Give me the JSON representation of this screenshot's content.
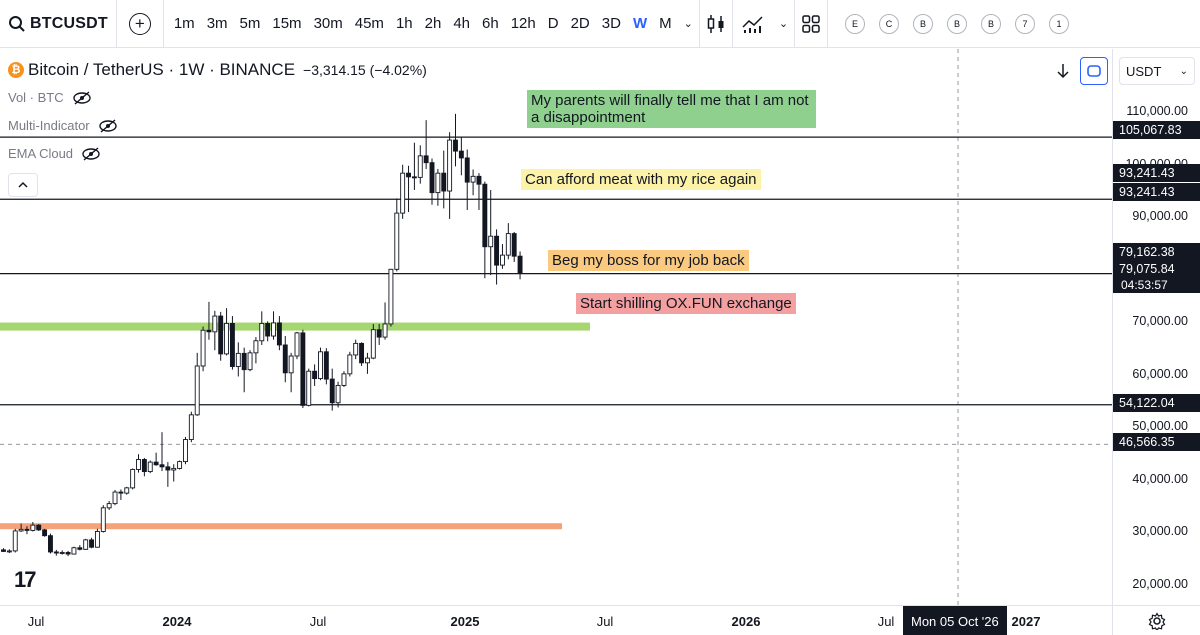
{
  "toolbar": {
    "symbol": "BTCUSDT",
    "timeframes": [
      "1m",
      "3m",
      "5m",
      "15m",
      "30m",
      "45m",
      "1h",
      "2h",
      "4h",
      "6h",
      "12h",
      "D",
      "2D",
      "3D",
      "W",
      "M"
    ],
    "active_timeframe": "W",
    "small_buttons": [
      "E",
      "C",
      "B",
      "B",
      "B",
      "7",
      "1"
    ]
  },
  "legend": {
    "title": "Bitcoin / TetherUS · 1W · BINANCE",
    "change": "−3,314.15 (−4.02%)",
    "indicators": [
      "Vol · BTC",
      "Multi-Indicator",
      "EMA Cloud"
    ]
  },
  "annotations": [
    {
      "text": "My parents will finally tell me that I am not a disappointment",
      "bg": "#8fd08f"
    },
    {
      "text": "Can afford meat with my rice again",
      "bg": "#fdf3a8"
    },
    {
      "text": "Beg my boss for my job back",
      "bg": "#f9ca7f"
    },
    {
      "text": "Start shilling OX.FUN exchange",
      "bg": "#f4a0a0"
    }
  ],
  "price_axis": {
    "currency": "USDT",
    "ticks": [
      "110,000.00",
      "100,000.00",
      "90,000.00",
      "70,000.00",
      "60,000.00",
      "50,000.00",
      "40,000.00",
      "30,000.00",
      "20,000.00"
    ],
    "labels": [
      "105,067.83",
      "93,241.43",
      "93,241.43",
      "79,162.38",
      "79,075.84",
      "54,122.04",
      "46,566.35"
    ],
    "countdown": "04:53:57"
  },
  "time_axis": {
    "ticks": [
      "Jul",
      "2024",
      "Jul",
      "2025",
      "Jul",
      "2026",
      "Jul",
      "2027"
    ],
    "crosshair": "Mon 05 Oct '26"
  },
  "colors": {
    "up": "#ffffff",
    "down": "#131722",
    "accent": "#2962ff",
    "green_zone": "#a5d66f",
    "orange_zone": "#f5a27a"
  },
  "chart_data": {
    "type": "candlestick",
    "horizontal_levels": [
      105067.83,
      93241.43,
      79075.84,
      54122.04
    ],
    "crosshair_price": 46566.35,
    "zones": [
      {
        "price": 69000,
        "color": "green"
      },
      {
        "price": 31000,
        "color": "orange"
      }
    ],
    "candles": [
      [
        26500,
        26800,
        26100,
        26200
      ],
      [
        26200,
        26600,
        25900,
        26300
      ],
      [
        26300,
        30500,
        26000,
        30100
      ],
      [
        30100,
        31500,
        29900,
        30400
      ],
      [
        30400,
        31000,
        29500,
        30200
      ],
      [
        30200,
        31800,
        30000,
        31200
      ],
      [
        31200,
        31400,
        30100,
        30300
      ],
      [
        30300,
        30500,
        29000,
        29200
      ],
      [
        29200,
        29600,
        25800,
        26100
      ],
      [
        26100,
        26500,
        25400,
        25900
      ],
      [
        25900,
        26400,
        25600,
        26000
      ],
      [
        26000,
        26300,
        25300,
        25700
      ],
      [
        25700,
        27100,
        25600,
        26900
      ],
      [
        26900,
        27400,
        26400,
        26600
      ],
      [
        26600,
        28600,
        26500,
        28400
      ],
      [
        28400,
        28800,
        26800,
        27000
      ],
      [
        27000,
        30500,
        26900,
        30000
      ],
      [
        30000,
        35000,
        29800,
        34500
      ],
      [
        34500,
        35800,
        34100,
        35300
      ],
      [
        35300,
        37900,
        35000,
        37500
      ],
      [
        37500,
        38000,
        36000,
        37300
      ],
      [
        37300,
        38500,
        37000,
        38300
      ],
      [
        38300,
        42000,
        38000,
        41800
      ],
      [
        41800,
        44700,
        41200,
        43700
      ],
      [
        43700,
        44000,
        40500,
        41400
      ],
      [
        41400,
        43500,
        41100,
        43200
      ],
      [
        43200,
        45000,
        42500,
        42700
      ],
      [
        42700,
        48900,
        41500,
        42300
      ],
      [
        42300,
        43200,
        38500,
        41700
      ],
      [
        41700,
        42800,
        39500,
        42000
      ],
      [
        42000,
        43500,
        41800,
        43300
      ],
      [
        43300,
        48000,
        42800,
        47500
      ],
      [
        47500,
        52800,
        47000,
        52200
      ],
      [
        52200,
        64000,
        52000,
        61500
      ],
      [
        61500,
        69000,
        60500,
        68300
      ],
      [
        68300,
        73700,
        66500,
        68000
      ],
      [
        68000,
        72000,
        64500,
        71000
      ],
      [
        71000,
        71800,
        62500,
        63800
      ],
      [
        63800,
        72500,
        63500,
        69600
      ],
      [
        69600,
        71000,
        60800,
        61400
      ],
      [
        61400,
        66000,
        59500,
        63900
      ],
      [
        63900,
        65000,
        56500,
        60800
      ],
      [
        60800,
        64500,
        60500,
        64000
      ],
      [
        64000,
        67000,
        62000,
        66300
      ],
      [
        66300,
        71900,
        65500,
        69600
      ],
      [
        69600,
        70000,
        66200,
        67200
      ],
      [
        67200,
        71900,
        66500,
        69700
      ],
      [
        69700,
        71000,
        64500,
        65500
      ],
      [
        65500,
        67200,
        58400,
        60200
      ],
      [
        60200,
        64000,
        56500,
        63400
      ],
      [
        63400,
        68000,
        62800,
        67800
      ],
      [
        67800,
        68400,
        53500,
        54000
      ],
      [
        54000,
        61000,
        53800,
        60500
      ],
      [
        60500,
        61800,
        57700,
        59100
      ],
      [
        59100,
        65000,
        58800,
        64200
      ],
      [
        64200,
        64900,
        58000,
        59000
      ],
      [
        59000,
        61000,
        53000,
        54500
      ],
      [
        54500,
        58500,
        53600,
        57800
      ],
      [
        57800,
        60500,
        57500,
        60000
      ],
      [
        60000,
        64200,
        59500,
        63600
      ],
      [
        63600,
        66500,
        62800,
        65800
      ],
      [
        65800,
        66000,
        61500,
        62100
      ],
      [
        62100,
        64000,
        60000,
        63000
      ],
      [
        63000,
        69500,
        62800,
        68400
      ],
      [
        68400,
        69500,
        65500,
        67000
      ],
      [
        67000,
        73600,
        66500,
        69500
      ],
      [
        69500,
        80000,
        69000,
        79900
      ],
      [
        79900,
        93400,
        79500,
        90600
      ],
      [
        90600,
        99800,
        89500,
        98200
      ],
      [
        98200,
        99600,
        90800,
        97500
      ],
      [
        97500,
        104000,
        95000,
        97400
      ],
      [
        97400,
        103500,
        96200,
        101500
      ],
      [
        101500,
        108300,
        99000,
        100200
      ],
      [
        100200,
        101000,
        92200,
        94500
      ],
      [
        94500,
        99000,
        92000,
        98200
      ],
      [
        98200,
        102500,
        91500,
        94800
      ],
      [
        94800,
        106000,
        89500,
        104500
      ],
      [
        104500,
        109500,
        99500,
        102400
      ],
      [
        102400,
        105000,
        97800,
        101100
      ],
      [
        101100,
        102700,
        91200,
        96500
      ],
      [
        96500,
        98900,
        94000,
        97600
      ],
      [
        97600,
        98200,
        91200,
        96100
      ],
      [
        96100,
        96600,
        78200,
        84200
      ],
      [
        84200,
        95000,
        78800,
        86200
      ],
      [
        86200,
        87500,
        77000,
        80700
      ],
      [
        80700,
        84700,
        80000,
        82600
      ],
      [
        82600,
        88700,
        81800,
        86700
      ],
      [
        86700,
        87000,
        81300,
        82400
      ],
      [
        82400,
        83300,
        78000,
        79100
      ]
    ]
  }
}
